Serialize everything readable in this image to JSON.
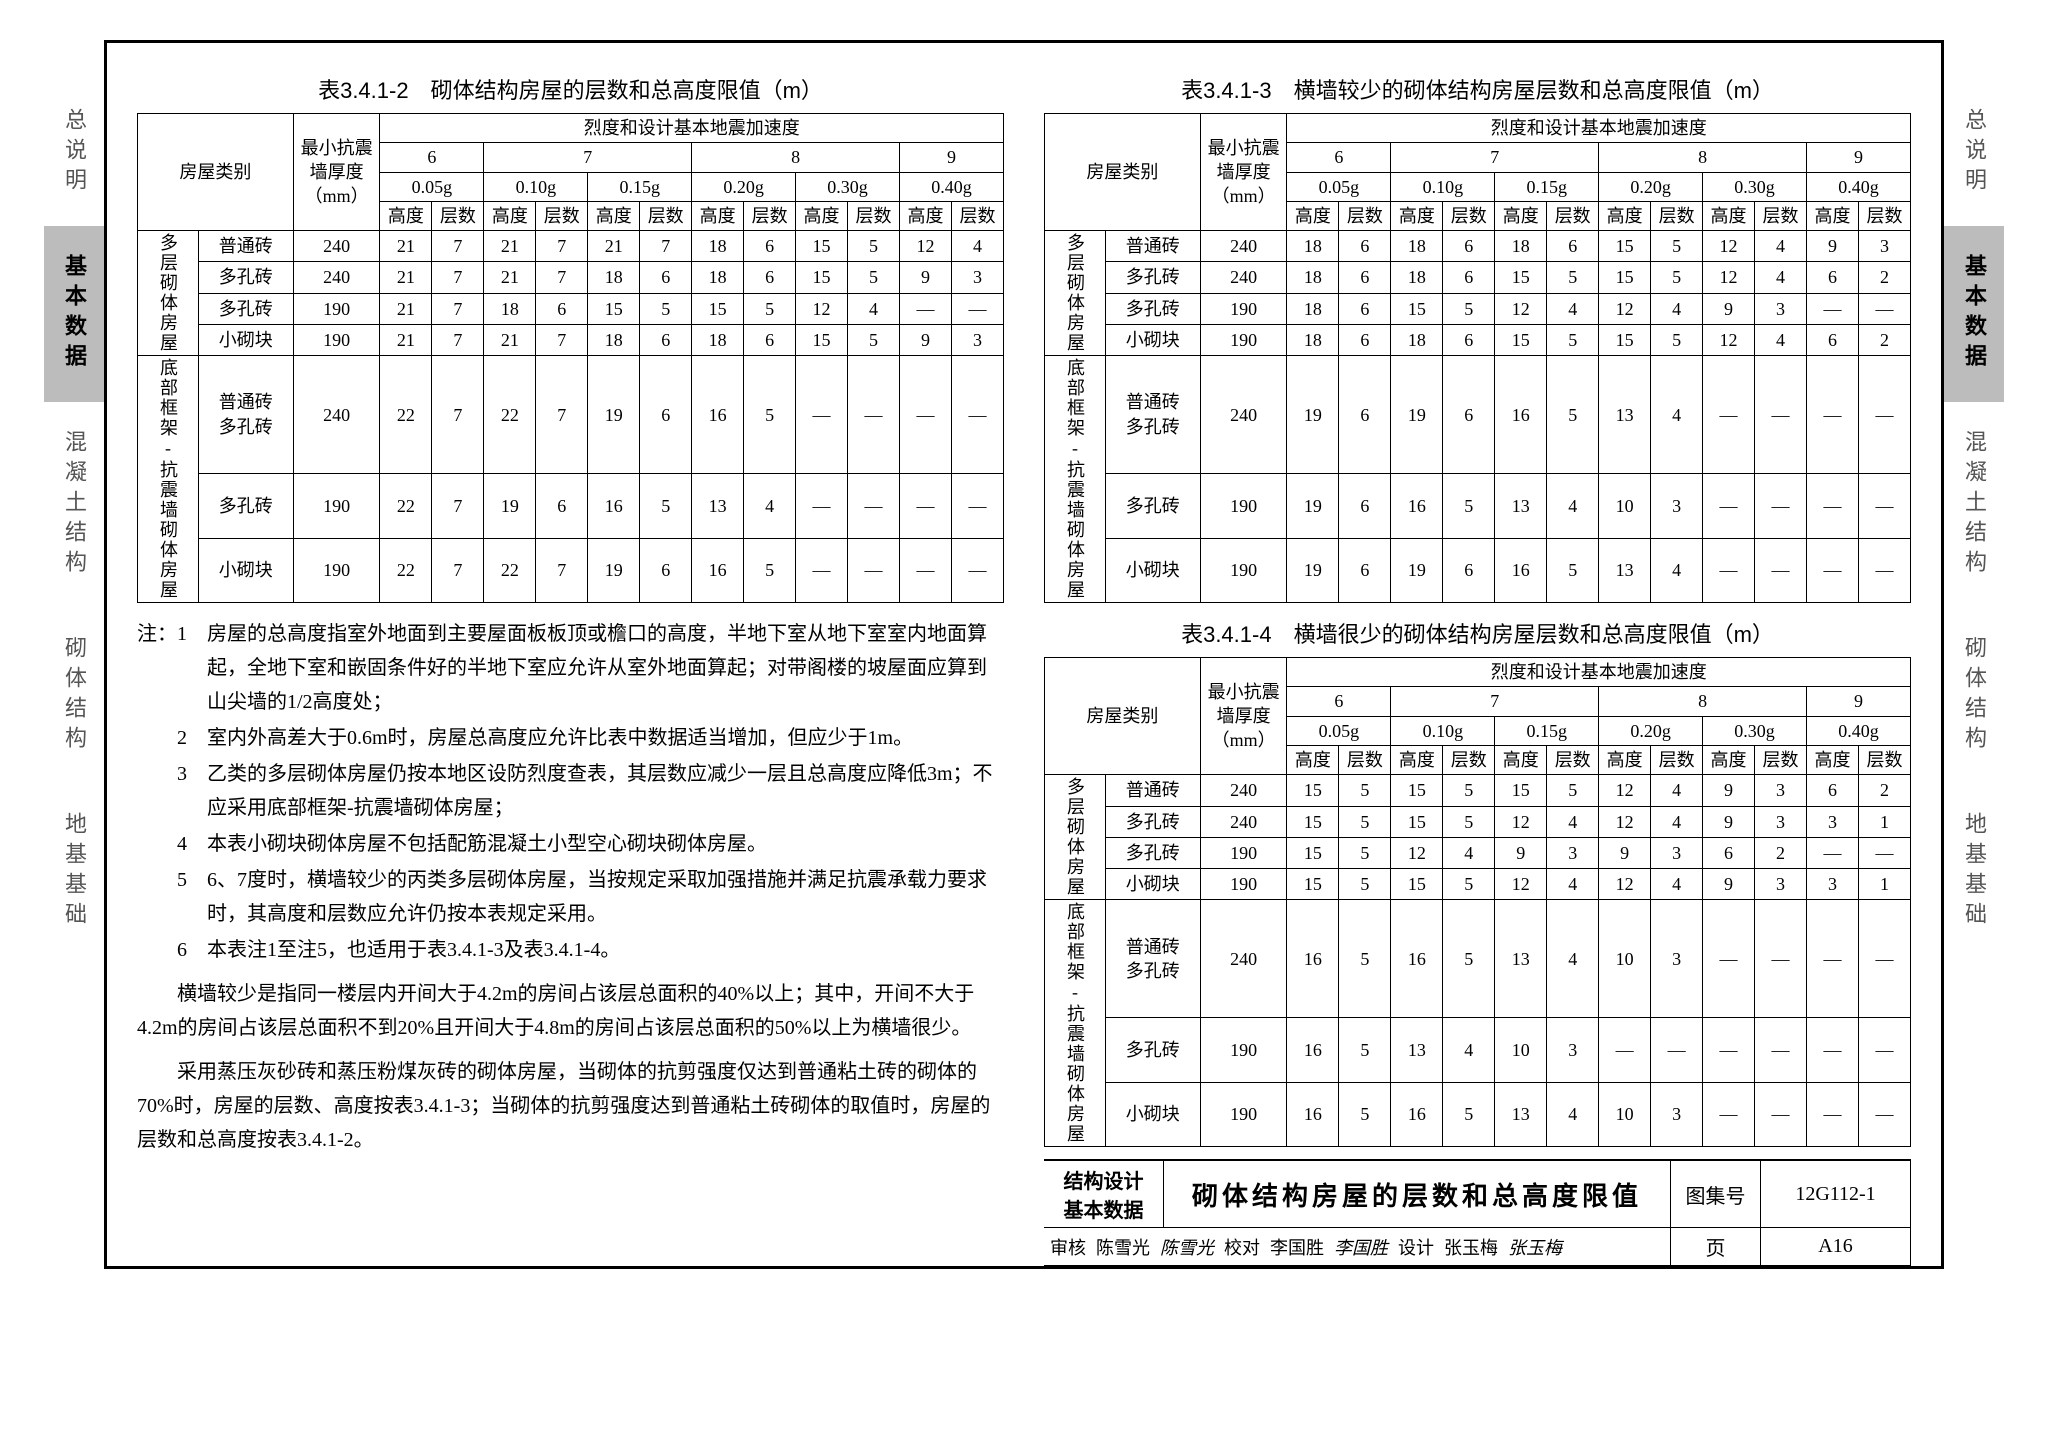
{
  "sideTabs": [
    "总说明",
    "基本数据",
    "混凝土结构",
    "砌体结构",
    "地基基础"
  ],
  "activeTab": 1,
  "table2": {
    "title": "表3.4.1-2　砌体结构房屋的层数和总高度限值（m）",
    "intensityHeader": "烈度和设计基本地震加速度",
    "colLabels": {
      "type": "房屋类别",
      "thick": "最小抗震墙厚度（mm）",
      "h": "高度",
      "n": "层数"
    },
    "groups": [
      "6",
      "7",
      "8",
      "9"
    ],
    "subgroups": [
      "0.05g",
      "0.10g",
      "0.15g",
      "0.20g",
      "0.30g",
      "0.40g"
    ],
    "blocks": [
      {
        "group": "多层砌体房屋",
        "rows": [
          {
            "t": "普通砖",
            "mm": "240",
            "v": [
              "21",
              "7",
              "21",
              "7",
              "21",
              "7",
              "18",
              "6",
              "15",
              "5",
              "12",
              "4"
            ]
          },
          {
            "t": "多孔砖",
            "mm": "240",
            "v": [
              "21",
              "7",
              "21",
              "7",
              "18",
              "6",
              "18",
              "6",
              "15",
              "5",
              "9",
              "3"
            ]
          },
          {
            "t": "多孔砖",
            "mm": "190",
            "v": [
              "21",
              "7",
              "18",
              "6",
              "15",
              "5",
              "15",
              "5",
              "12",
              "4",
              "—",
              "—"
            ]
          },
          {
            "t": "小砌块",
            "mm": "190",
            "v": [
              "21",
              "7",
              "21",
              "7",
              "18",
              "6",
              "18",
              "6",
              "15",
              "5",
              "9",
              "3"
            ]
          }
        ]
      },
      {
        "group": "底部框架-抗震墙砌体房屋",
        "rows": [
          {
            "t": "普通砖\n多孔砖",
            "mm": "240",
            "v": [
              "22",
              "7",
              "22",
              "7",
              "19",
              "6",
              "16",
              "5",
              "—",
              "—",
              "—",
              "—"
            ]
          },
          {
            "t": "多孔砖",
            "mm": "190",
            "v": [
              "22",
              "7",
              "19",
              "6",
              "16",
              "5",
              "13",
              "4",
              "—",
              "—",
              "—",
              "—"
            ]
          },
          {
            "t": "小砌块",
            "mm": "190",
            "v": [
              "22",
              "7",
              "22",
              "7",
              "19",
              "6",
              "16",
              "5",
              "—",
              "—",
              "—",
              "—"
            ]
          }
        ]
      }
    ]
  },
  "table3": {
    "title": "表3.4.1-3　横墙较少的砌体结构房屋层数和总高度限值（m）",
    "blocks": [
      {
        "group": "多层砌体房屋",
        "rows": [
          {
            "t": "普通砖",
            "mm": "240",
            "v": [
              "18",
              "6",
              "18",
              "6",
              "18",
              "6",
              "15",
              "5",
              "12",
              "4",
              "9",
              "3"
            ]
          },
          {
            "t": "多孔砖",
            "mm": "240",
            "v": [
              "18",
              "6",
              "18",
              "6",
              "15",
              "5",
              "15",
              "5",
              "12",
              "4",
              "6",
              "2"
            ]
          },
          {
            "t": "多孔砖",
            "mm": "190",
            "v": [
              "18",
              "6",
              "15",
              "5",
              "12",
              "4",
              "12",
              "4",
              "9",
              "3",
              "—",
              "—"
            ]
          },
          {
            "t": "小砌块",
            "mm": "190",
            "v": [
              "18",
              "6",
              "18",
              "6",
              "15",
              "5",
              "15",
              "5",
              "12",
              "4",
              "6",
              "2"
            ]
          }
        ]
      },
      {
        "group": "底部框架-抗震墙砌体房屋",
        "rows": [
          {
            "t": "普通砖\n多孔砖",
            "mm": "240",
            "v": [
              "19",
              "6",
              "19",
              "6",
              "16",
              "5",
              "13",
              "4",
              "—",
              "—",
              "—",
              "—"
            ]
          },
          {
            "t": "多孔砖",
            "mm": "190",
            "v": [
              "19",
              "6",
              "16",
              "5",
              "13",
              "4",
              "10",
              "3",
              "—",
              "—",
              "—",
              "—"
            ]
          },
          {
            "t": "小砌块",
            "mm": "190",
            "v": [
              "19",
              "6",
              "19",
              "6",
              "16",
              "5",
              "13",
              "4",
              "—",
              "—",
              "—",
              "—"
            ]
          }
        ]
      }
    ]
  },
  "table4": {
    "title": "表3.4.1-4　横墙很少的砌体结构房屋层数和总高度限值（m）",
    "blocks": [
      {
        "group": "多层砌体房屋",
        "rows": [
          {
            "t": "普通砖",
            "mm": "240",
            "v": [
              "15",
              "5",
              "15",
              "5",
              "15",
              "5",
              "12",
              "4",
              "9",
              "3",
              "6",
              "2"
            ]
          },
          {
            "t": "多孔砖",
            "mm": "240",
            "v": [
              "15",
              "5",
              "15",
              "5",
              "12",
              "4",
              "12",
              "4",
              "9",
              "3",
              "3",
              "1"
            ]
          },
          {
            "t": "多孔砖",
            "mm": "190",
            "v": [
              "15",
              "5",
              "12",
              "4",
              "9",
              "3",
              "9",
              "3",
              "6",
              "2",
              "—",
              "—"
            ]
          },
          {
            "t": "小砌块",
            "mm": "190",
            "v": [
              "15",
              "5",
              "15",
              "5",
              "12",
              "4",
              "12",
              "4",
              "9",
              "3",
              "3",
              "1"
            ]
          }
        ]
      },
      {
        "group": "底部框架-抗震墙砌体房屋",
        "rows": [
          {
            "t": "普通砖\n多孔砖",
            "mm": "240",
            "v": [
              "16",
              "5",
              "16",
              "5",
              "13",
              "4",
              "10",
              "3",
              "—",
              "—",
              "—",
              "—"
            ]
          },
          {
            "t": "多孔砖",
            "mm": "190",
            "v": [
              "16",
              "5",
              "13",
              "4",
              "10",
              "3",
              "—",
              "—",
              "—",
              "—",
              "—",
              "—"
            ]
          },
          {
            "t": "小砌块",
            "mm": "190",
            "v": [
              "16",
              "5",
              "16",
              "5",
              "13",
              "4",
              "10",
              "3",
              "—",
              "—",
              "—",
              "—"
            ]
          }
        ]
      }
    ]
  },
  "notes": [
    "注：1　房屋的总高度指室外地面到主要屋面板板顶或檐口的高度，半地下室从地下室室内地面算起，全地下室和嵌固条件好的半地下室应允许从室外地面算起；对带阁楼的坡屋面应算到山尖墙的1/2高度处；",
    "　　2　室内外高差大于0.6m时，房屋总高度应允许比表中数据适当增加，但应少于1m。",
    "　　3　乙类的多层砌体房屋仍按本地区设防烈度查表，其层数应减少一层且总高度应降低3m；不应采用底部框架-抗震墙砌体房屋；",
    "　　4　本表小砌块砌体房屋不包括配筋混凝土小型空心砌块砌体房屋。",
    "　　5　6、7度时，横墙较少的丙类多层砌体房屋，当按规定采取加强措施并满足抗震承载力要求时，其高度和层数应允许仍按本表规定采用。",
    "　　6　本表注1至注5，也适用于表3.4.1-3及表3.4.1-4。"
  ],
  "paras": [
    "横墙较少是指同一楼层内开间大于4.2m的房间占该层总面积的40%以上；其中，开间不大于4.2m的房间占该层总面积不到20%且开间大于4.8m的房间占该层总面积的50%以上为横墙很少。",
    "采用蒸压灰砂砖和蒸压粉煤灰砖的砌体房屋，当砌体的抗剪强度仅达到普通粘土砖的砌体的70%时，房屋的层数、高度按表3.4.1-3；当砌体的抗剪强度达到普通粘土砖砌体的取值时，房屋的层数和总高度按表3.4.1-2。"
  ],
  "titleBlock": {
    "design": "结构设计\n基本数据",
    "main": "砌体结构房屋的层数和总高度限值",
    "seriesLbl": "图集号",
    "series": "12G112-1",
    "review": "审核",
    "reviewer": "陈雪光",
    "reviewSig": "陈雪光",
    "check": "校对",
    "checker": "李国胜",
    "checkSig": "李国胜",
    "draw": "设计",
    "drawer": "张玉梅",
    "drawSig": "张玉梅",
    "pageLbl": "页",
    "page": "A16"
  }
}
